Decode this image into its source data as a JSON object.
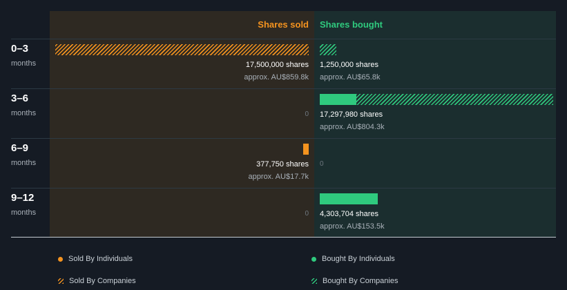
{
  "headers": {
    "sold": "Shares sold",
    "bought": "Shares bought"
  },
  "colors": {
    "sold": "#f4931f",
    "bought": "#2fca7e",
    "sold_bg": "#2e2922",
    "bought_bg": "#1b2e2f"
  },
  "rows": [
    {
      "period": "0–3",
      "unit": "months",
      "sold": {
        "shares": "17,500,000 shares",
        "approx": "approx. AU$859.8k",
        "zero": ""
      },
      "bought": {
        "shares": "1,250,000 shares",
        "approx": "approx. AU$65.8k",
        "zero": ""
      }
    },
    {
      "period": "3–6",
      "unit": "months",
      "sold": {
        "shares": "",
        "approx": "",
        "zero": "0"
      },
      "bought": {
        "shares": "17,297,980 shares",
        "approx": "approx. AU$804.3k",
        "zero": ""
      }
    },
    {
      "period": "6–9",
      "unit": "months",
      "sold": {
        "shares": "377,750 shares",
        "approx": "approx. AU$17.7k",
        "zero": ""
      },
      "bought": {
        "shares": "",
        "approx": "",
        "zero": "0"
      }
    },
    {
      "period": "9–12",
      "unit": "months",
      "sold": {
        "shares": "",
        "approx": "",
        "zero": "0"
      },
      "bought": {
        "shares": "4,303,704 shares",
        "approx": "approx. AU$153.5k",
        "zero": ""
      }
    }
  ],
  "legend": {
    "sold_individuals": "Sold By Individuals",
    "bought_individuals": "Bought By Individuals",
    "sold_companies": "Sold By Companies",
    "bought_companies": "Bought By Companies"
  },
  "chart_data": {
    "type": "bar",
    "categories": [
      "0–3",
      "3–6",
      "6–9",
      "9–12"
    ],
    "series": [
      {
        "name": "Sold By Individuals",
        "values": [
          0,
          0,
          377750,
          0
        ]
      },
      {
        "name": "Sold By Companies",
        "values": [
          17500000,
          0,
          0,
          0
        ]
      },
      {
        "name": "Bought By Individuals",
        "values": [
          0,
          2700000,
          0,
          4303704
        ]
      },
      {
        "name": "Bought By Companies",
        "values": [
          1250000,
          14597980,
          0,
          0
        ]
      }
    ],
    "xlabel": "",
    "ylabel": ""
  }
}
